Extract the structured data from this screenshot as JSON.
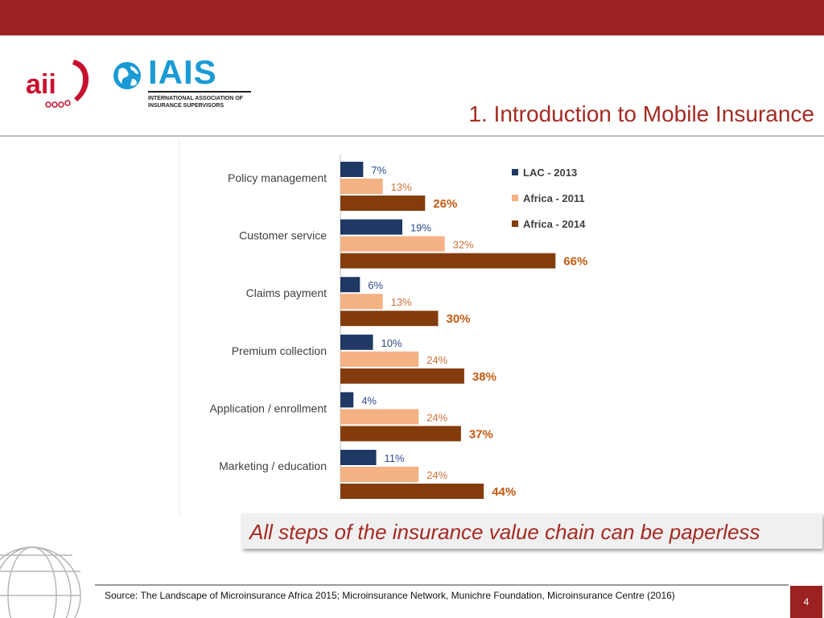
{
  "slide": {
    "title": "1. Introduction to Mobile Insurance",
    "callout": "All steps of the insurance value chain can be paperless",
    "source": "Source: The Landscape of Microinsurance Africa 2015; Microinsurance Network, Munichre Foundation, Microinsurance Centre (2016)",
    "page_number": "4"
  },
  "logos": {
    "aii": "aii",
    "iais_name": "IAIS",
    "iais_subtitle_line1": "INTERNATIONAL ASSOCIATION OF",
    "iais_subtitle_line2": "INSURANCE SUPERVISORS"
  },
  "colors": {
    "brand_red": "#9b2220",
    "lac_2013": "#1f3864",
    "africa_2011": "#f4b183",
    "africa_2014": "#843c0c",
    "label_lac": "#2f4b8a",
    "label_africa_2011": "#d0703a",
    "label_africa_2014": "#c55a11"
  },
  "chart_data": {
    "type": "bar",
    "orientation": "horizontal",
    "categories": [
      "Policy management",
      "Customer service",
      "Claims payment",
      "Premium collection",
      "Application / enrollment",
      "Marketing / education"
    ],
    "series": [
      {
        "name": "LAC - 2013",
        "values": [
          7,
          19,
          6,
          10,
          4,
          11
        ],
        "labels": [
          "7%",
          "19%",
          "6%",
          "10%",
          "4%",
          "11%"
        ]
      },
      {
        "name": "Africa - 2011",
        "values": [
          13,
          32,
          13,
          24,
          24,
          24
        ],
        "labels": [
          "13%",
          "32%",
          "13%",
          "24%",
          "24%",
          "24%"
        ]
      },
      {
        "name": "Africa - 2014",
        "values": [
          26,
          66,
          30,
          38,
          37,
          44
        ],
        "labels": [
          "26%",
          "66%",
          "30%",
          "38%",
          "37%",
          "44%"
        ]
      }
    ],
    "xlim": [
      0,
      100
    ],
    "legend_position": "top-right",
    "grid": false,
    "title": "",
    "xlabel": "",
    "ylabel": ""
  }
}
